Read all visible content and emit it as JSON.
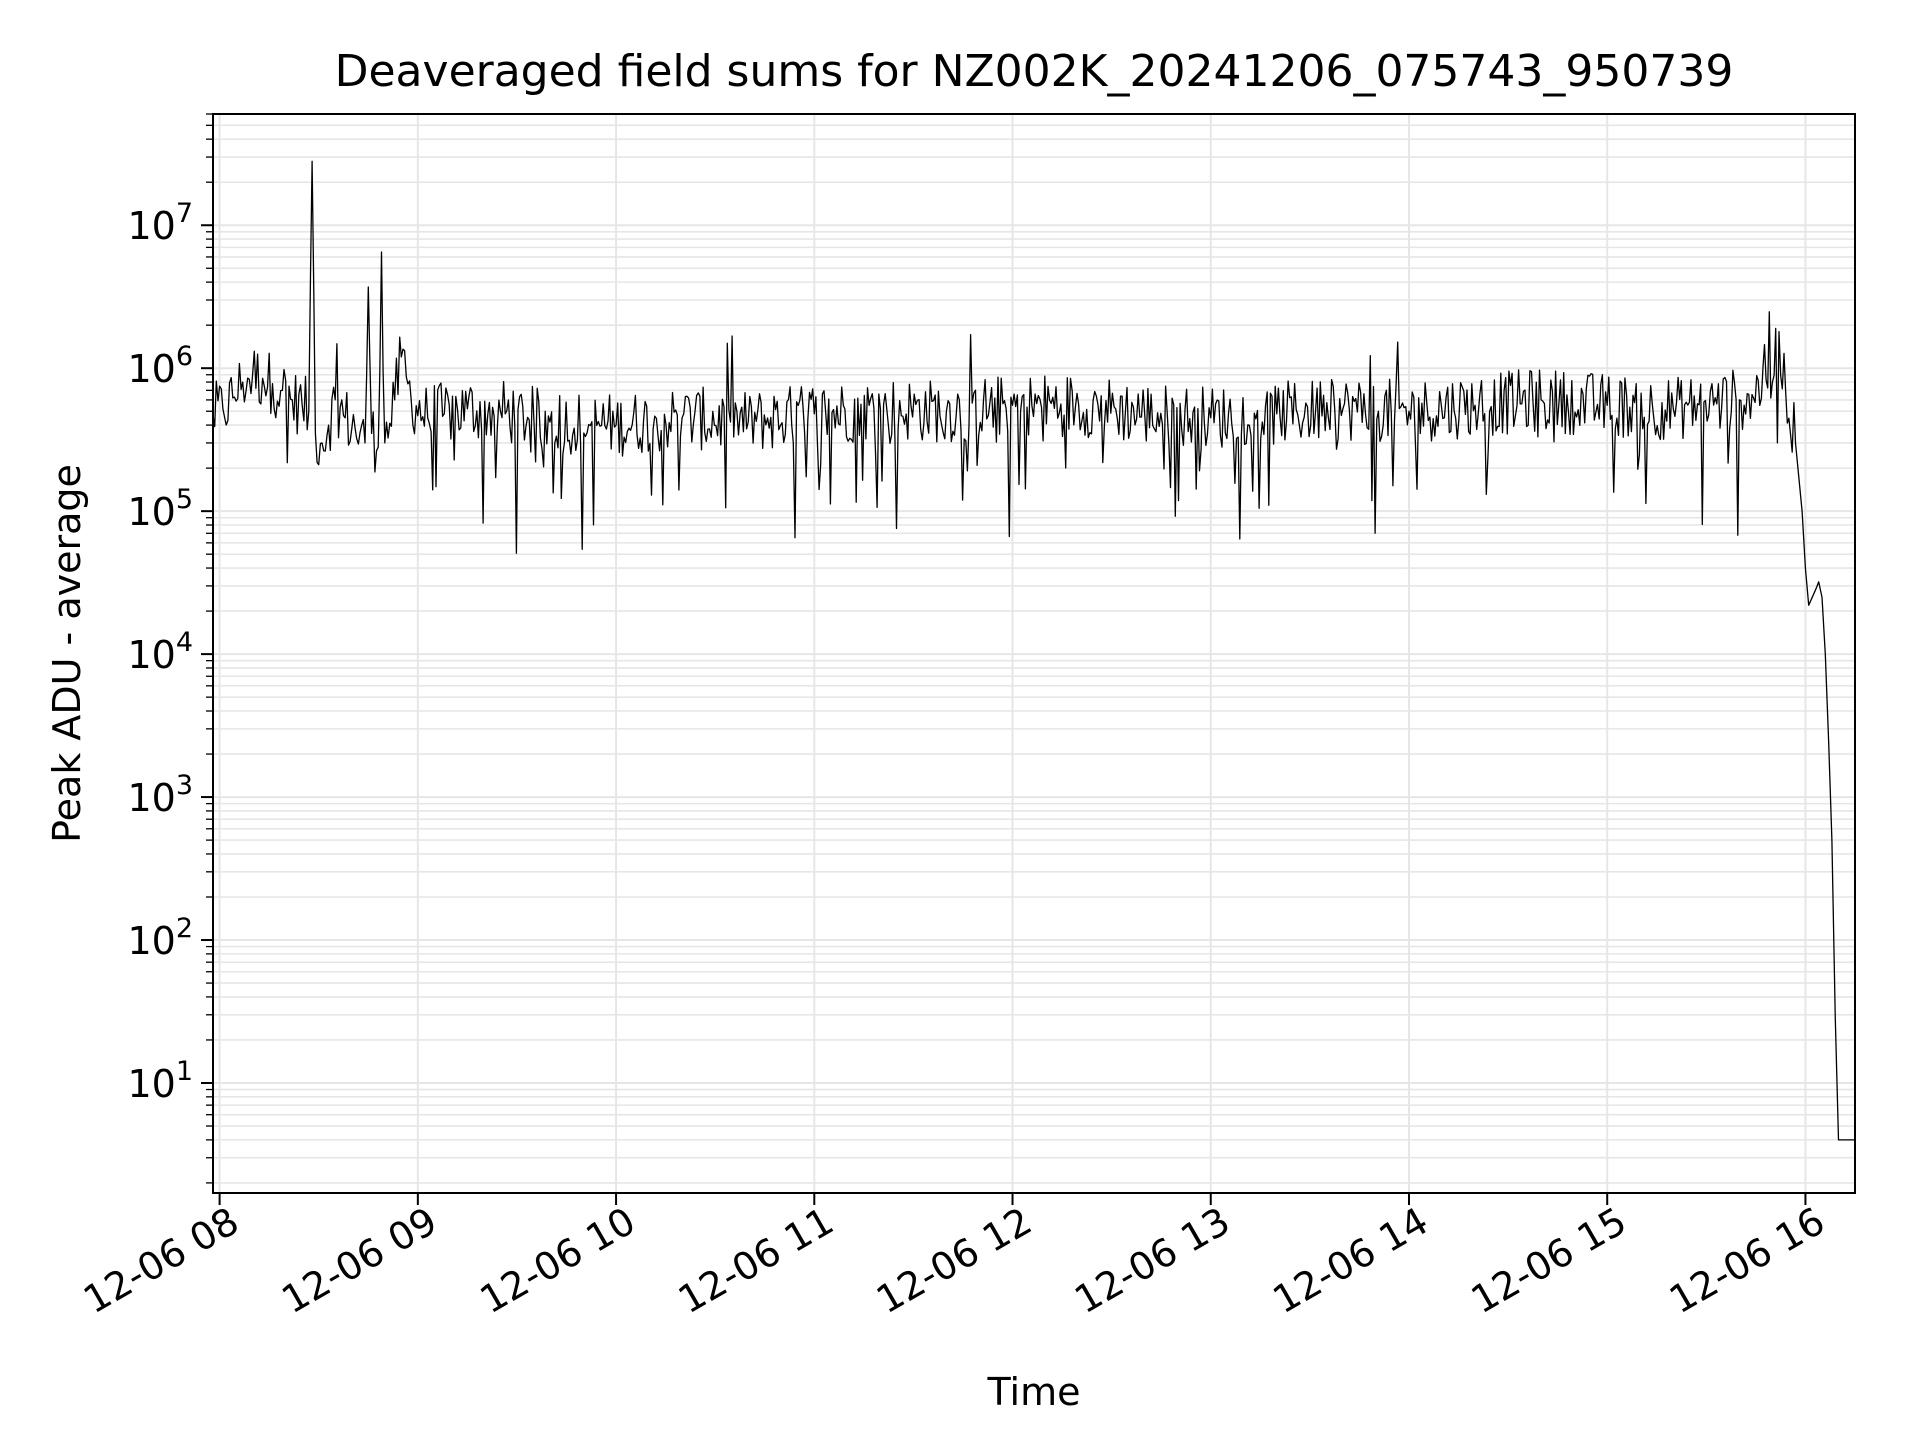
{
  "chart_data": {
    "type": "line",
    "title": "Deaveraged field sums for NZ002K_20241206_075743_950739",
    "xlabel": "Time",
    "ylabel": "Peak ADU - average",
    "x_tick_labels": [
      "12-06 08",
      "12-06 09",
      "12-06 10",
      "12-06 11",
      "12-06 12",
      "12-06 13",
      "12-06 14",
      "12-06 15",
      "12-06 16"
    ],
    "y_scale": "log",
    "ylim": [
      1.7,
      60000000
    ],
    "xlim": [
      "2024-12-06 07:58",
      "2024-12-06 16:15"
    ],
    "y_ticks": [
      {
        "base": "10",
        "exp": "1",
        "value": 10
      },
      {
        "base": "10",
        "exp": "2",
        "value": 100
      },
      {
        "base": "10",
        "exp": "3",
        "value": 1000
      },
      {
        "base": "10",
        "exp": "4",
        "value": 10000
      },
      {
        "base": "10",
        "exp": "5",
        "value": 100000
      },
      {
        "base": "10",
        "exp": "6",
        "value": 1000000
      },
      {
        "base": "10",
        "exp": "7",
        "value": 10000000
      }
    ],
    "grid": true,
    "line_color": "#000000",
    "grid_color": "#e6e6e6",
    "series": [
      {
        "points": [
          [
            "2024-12-06 07:58",
            470000
          ],
          [
            "2024-12-06 08:01",
            520000
          ],
          [
            "2024-12-06 08:04",
            620000
          ],
          [
            "2024-12-06 08:07",
            800000
          ],
          [
            "2024-12-06 08:10",
            900000
          ],
          [
            "2024-12-06 08:13",
            850000
          ],
          [
            "2024-12-06 08:16",
            780000
          ],
          [
            "2024-12-06 08:19",
            700000
          ],
          [
            "2024-12-06 08:22",
            600000
          ],
          [
            "2024-12-06 08:25",
            550000
          ],
          [
            "2024-12-06 08:27",
            500000
          ],
          [
            "2024-12-06 08:28",
            28000000
          ],
          [
            "2024-12-06 08:29",
            350000
          ],
          [
            "2024-12-06 08:31",
            300000
          ],
          [
            "2024-12-06 08:33",
            400000
          ],
          [
            "2024-12-06 08:35",
            600000
          ],
          [
            "2024-12-06 08:38",
            450000
          ],
          [
            "2024-12-06 08:41",
            380000
          ],
          [
            "2024-12-06 08:44",
            300000
          ],
          [
            "2024-12-06 08:45",
            3700000
          ],
          [
            "2024-12-06 08:46",
            350000
          ],
          [
            "2024-12-06 08:48",
            280000
          ],
          [
            "2024-12-06 08:49",
            6500000
          ],
          [
            "2024-12-06 08:50",
            300000
          ],
          [
            "2024-12-06 08:53",
            600000
          ],
          [
            "2024-12-06 08:55",
            1200000
          ],
          [
            "2024-12-06 08:58",
            600000
          ],
          [
            "2024-12-06 09:03",
            450000
          ],
          [
            "2024-12-06 09:08",
            480000
          ],
          [
            "2024-12-06 09:15",
            520000
          ],
          [
            "2024-12-06 09:25",
            500000
          ],
          [
            "2024-12-06 09:40",
            420000
          ],
          [
            "2024-12-06 10:00",
            400000
          ],
          [
            "2024-12-06 10:20",
            450000
          ],
          [
            "2024-12-06 10:40",
            420000
          ],
          [
            "2024-12-06 11:00",
            480000
          ],
          [
            "2024-12-06 11:20",
            520000
          ],
          [
            "2024-12-06 11:40",
            500000
          ],
          [
            "2024-12-06 12:00",
            550000
          ],
          [
            "2024-12-06 12:20",
            560000
          ],
          [
            "2024-12-06 12:40",
            480000
          ],
          [
            "2024-12-06 13:00",
            450000
          ],
          [
            "2024-12-06 13:20",
            480000
          ],
          [
            "2024-12-06 13:40",
            520000
          ],
          [
            "2024-12-06 14:00",
            500000
          ],
          [
            "2024-12-06 14:20",
            550000
          ],
          [
            "2024-12-06 14:40",
            600000
          ],
          [
            "2024-12-06 15:00",
            550000
          ],
          [
            "2024-12-06 15:20",
            520000
          ],
          [
            "2024-12-06 15:40",
            600000
          ],
          [
            "2024-12-06 15:50",
            800000
          ],
          [
            "2024-12-06 15:52",
            1800000
          ],
          [
            "2024-12-06 15:54",
            700000
          ],
          [
            "2024-12-06 15:57",
            300000
          ],
          [
            "2024-12-06 15:59",
            100000
          ],
          [
            "2024-12-06 16:00",
            40000
          ],
          [
            "2024-12-06 16:01",
            22000
          ],
          [
            "2024-12-06 16:03",
            28000
          ],
          [
            "2024-12-06 16:04",
            32000
          ],
          [
            "2024-12-06 16:05",
            25000
          ],
          [
            "2024-12-06 16:06",
            10000
          ],
          [
            "2024-12-06 16:07",
            2500
          ],
          [
            "2024-12-06 16:08",
            500
          ],
          [
            "2024-12-06 16:09",
            30
          ],
          [
            "2024-12-06 16:10",
            4
          ],
          [
            "2024-12-06 16:15",
            4
          ]
        ]
      }
    ]
  }
}
